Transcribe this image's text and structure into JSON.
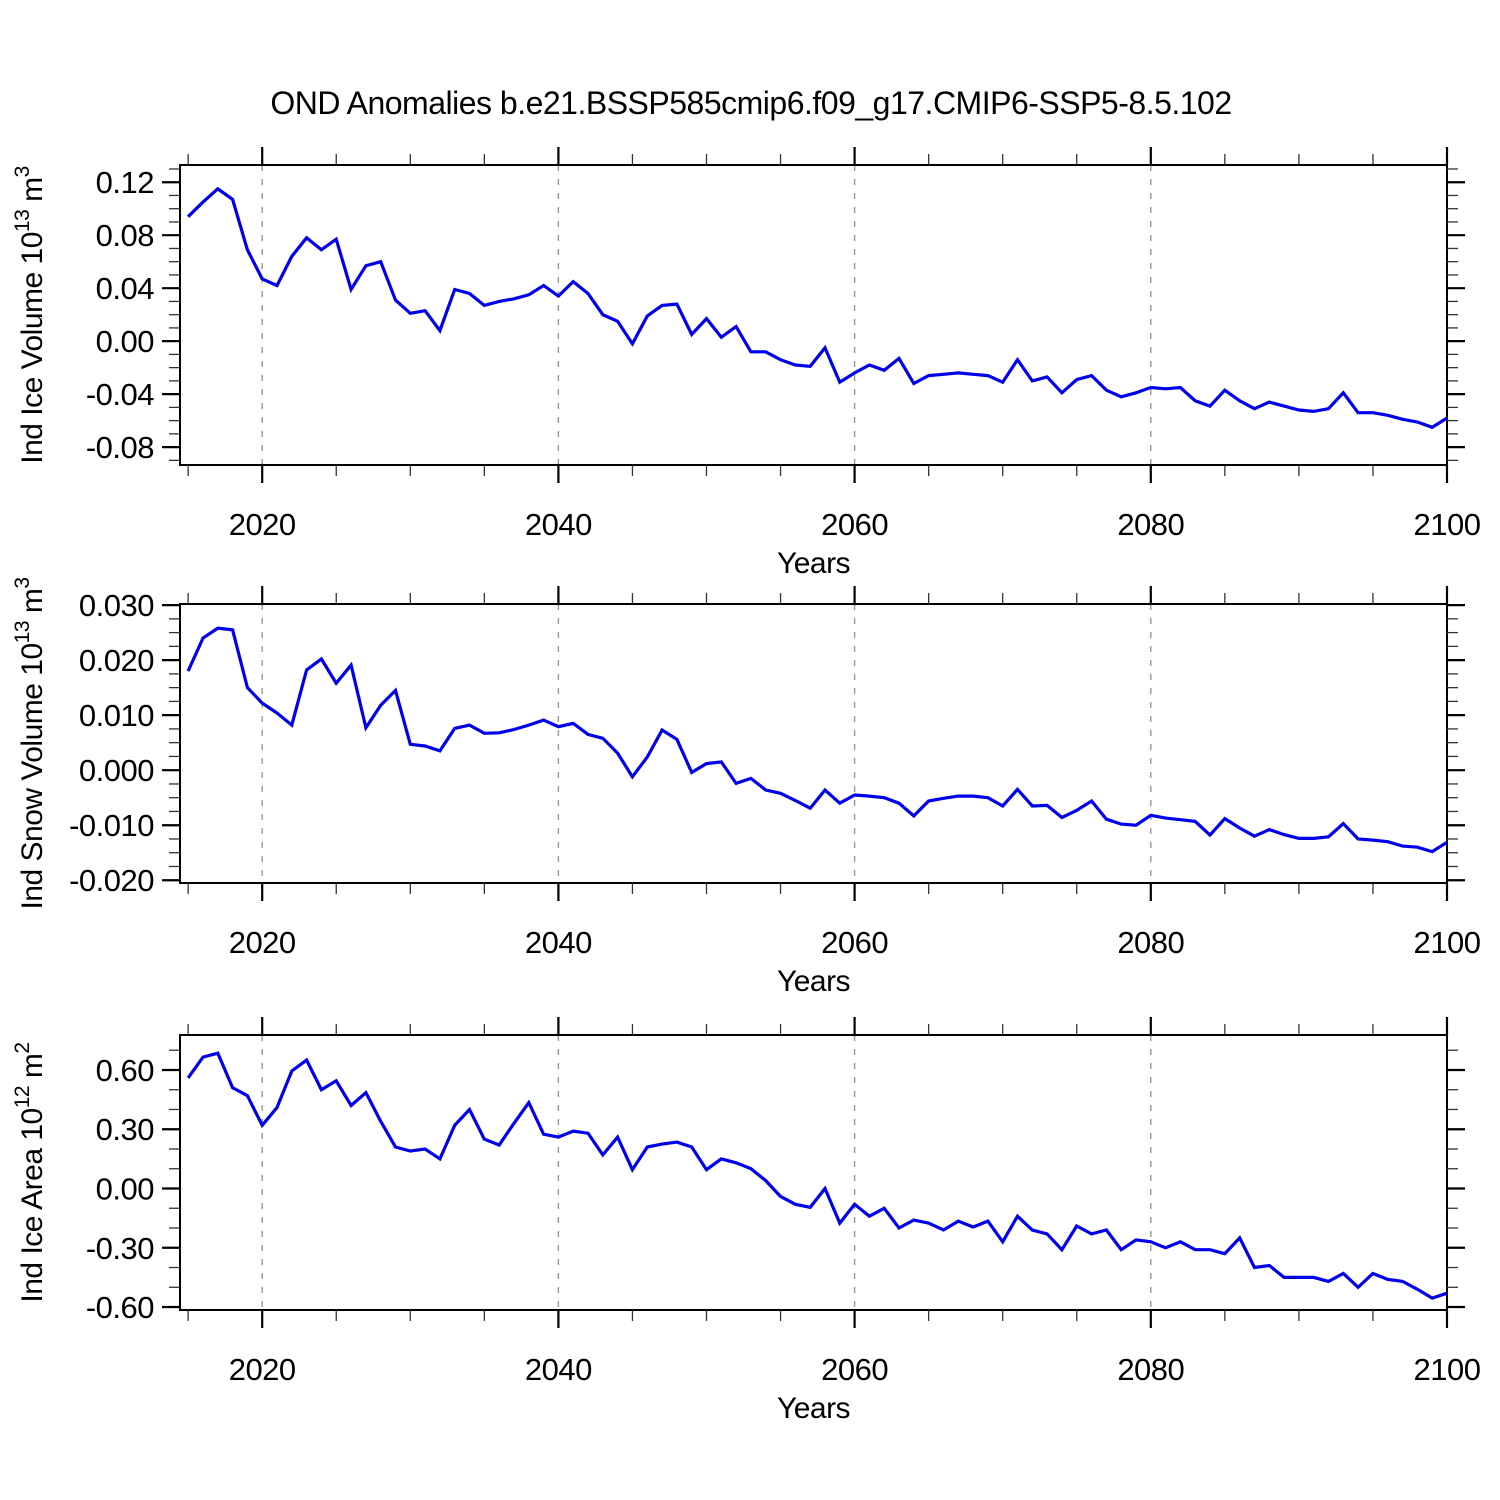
{
  "title": "OND Anomalies b.e21.BSSP585cmip6.f09_g17.CMIP6-SSP5-8.5.102",
  "chart_data": {
    "type": "line",
    "line_color": "#0000EE",
    "grid_color": "#999999",
    "x": {
      "label": "Years",
      "years_start": 2015,
      "years_end": 2100,
      "range": [
        2014.45,
        2100
      ],
      "ticks": [
        2020,
        2040,
        2060,
        2080,
        2100
      ],
      "tick_labels": [
        "2020",
        "2040",
        "2060",
        "2080",
        "2100"
      ],
      "minor_step": 5,
      "grid_at": [
        2020,
        2040,
        2060,
        2080
      ]
    },
    "panels": [
      {
        "name": "ind-ice-volume",
        "ylabel": {
          "text": "Ind Ice Volume 10",
          "sup": "13",
          "text2": " m",
          "sup2": "3"
        },
        "yrange": [
          -0.0935,
          0.133
        ],
        "ytick_values": [
          0.12,
          0.08,
          0.04,
          0.0,
          -0.04,
          -0.08
        ],
        "ytick_labels": [
          "0.12",
          "0.08",
          "0.04",
          "0.00",
          "-0.04",
          "-0.08"
        ],
        "yminor_step": 0.01,
        "values": [
          0.094,
          0.105,
          0.115,
          0.107,
          0.069,
          0.047,
          0.042,
          0.064,
          0.078,
          0.069,
          0.077,
          0.039,
          0.057,
          0.06,
          0.031,
          0.021,
          0.023,
          0.008,
          0.039,
          0.036,
          0.027,
          0.03,
          0.032,
          0.035,
          0.042,
          0.034,
          0.045,
          0.036,
          0.02,
          0.015,
          -0.002,
          0.019,
          0.027,
          0.028,
          0.005,
          0.017,
          0.003,
          0.011,
          -0.008,
          -0.008,
          -0.014,
          -0.018,
          -0.019,
          -0.005,
          -0.031,
          -0.024,
          -0.018,
          -0.022,
          -0.013,
          -0.032,
          -0.026,
          -0.025,
          -0.024,
          -0.025,
          -0.026,
          -0.031,
          -0.014,
          -0.03,
          -0.027,
          -0.039,
          -0.029,
          -0.026,
          -0.037,
          -0.042,
          -0.039,
          -0.035,
          -0.036,
          -0.035,
          -0.045,
          -0.049,
          -0.037,
          -0.045,
          -0.051,
          -0.046,
          -0.049,
          -0.052,
          -0.053,
          -0.051,
          -0.039,
          -0.054,
          -0.054,
          -0.056,
          -0.059,
          -0.061,
          -0.065,
          -0.058
        ]
      },
      {
        "name": "ind-snow-volume",
        "ylabel": {
          "text": "Ind Snow Volume 10",
          "sup": "13",
          "text2": " m",
          "sup2": "3"
        },
        "yrange": [
          -0.0205,
          0.0302
        ],
        "ytick_values": [
          0.03,
          0.02,
          0.01,
          0.0,
          -0.01,
          -0.02
        ],
        "ytick_labels": [
          "0.030",
          "0.020",
          "0.010",
          "0.000",
          "-0.010",
          "-0.020"
        ],
        "yminor_step": 0.0025,
        "values": [
          0.018,
          0.024,
          0.0258,
          0.0255,
          0.015,
          0.0122,
          0.0104,
          0.0082,
          0.0182,
          0.0202,
          0.0158,
          0.0191,
          0.0077,
          0.0118,
          0.0145,
          0.0047,
          0.0044,
          0.0035,
          0.0076,
          0.0082,
          0.0067,
          0.0068,
          0.0074,
          0.0082,
          0.0091,
          0.0079,
          0.0085,
          0.0065,
          0.0058,
          0.0031,
          -0.0012,
          0.0024,
          0.0073,
          0.0056,
          -0.0004,
          0.0012,
          0.0015,
          -0.0024,
          -0.0015,
          -0.0036,
          -0.0042,
          -0.0055,
          -0.0069,
          -0.0036,
          -0.006,
          -0.0045,
          -0.0047,
          -0.005,
          -0.006,
          -0.0083,
          -0.0056,
          -0.0051,
          -0.0047,
          -0.0047,
          -0.005,
          -0.0065,
          -0.0035,
          -0.0065,
          -0.0064,
          -0.0086,
          -0.0073,
          -0.0056,
          -0.0089,
          -0.0098,
          -0.01,
          -0.0082,
          -0.0087,
          -0.009,
          -0.0093,
          -0.0118,
          -0.0088,
          -0.0105,
          -0.012,
          -0.0108,
          -0.0117,
          -0.0124,
          -0.0124,
          -0.0121,
          -0.0097,
          -0.0125,
          -0.0127,
          -0.013,
          -0.0138,
          -0.014,
          -0.0148,
          -0.0131
        ]
      },
      {
        "name": "ind-ice-area",
        "ylabel": {
          "text": "Ind Ice Area 10",
          "sup": "12",
          "text2": " m",
          "sup2": "2"
        },
        "yrange": [
          -0.615,
          0.777
        ],
        "ytick_values": [
          0.6,
          0.3,
          0.0,
          -0.3,
          -0.6
        ],
        "ytick_labels": [
          "0.60",
          "0.30",
          "0.00",
          "-0.30",
          "-0.60"
        ],
        "yminor_step": 0.1,
        "values": [
          0.56,
          0.665,
          0.685,
          0.51,
          0.47,
          0.32,
          0.41,
          0.595,
          0.65,
          0.5,
          0.545,
          0.42,
          0.485,
          0.34,
          0.21,
          0.19,
          0.2,
          0.15,
          0.32,
          0.4,
          0.25,
          0.22,
          0.33,
          0.435,
          0.275,
          0.26,
          0.29,
          0.28,
          0.17,
          0.26,
          0.095,
          0.21,
          0.225,
          0.235,
          0.21,
          0.095,
          0.15,
          0.13,
          0.1,
          0.04,
          -0.04,
          -0.08,
          -0.095,
          0.0,
          -0.175,
          -0.08,
          -0.14,
          -0.1,
          -0.2,
          -0.16,
          -0.175,
          -0.21,
          -0.165,
          -0.195,
          -0.165,
          -0.27,
          -0.14,
          -0.21,
          -0.23,
          -0.31,
          -0.19,
          -0.23,
          -0.21,
          -0.31,
          -0.26,
          -0.27,
          -0.3,
          -0.27,
          -0.31,
          -0.31,
          -0.33,
          -0.25,
          -0.4,
          -0.39,
          -0.45,
          -0.45,
          -0.45,
          -0.47,
          -0.43,
          -0.5,
          -0.43,
          -0.46,
          -0.47,
          -0.51,
          -0.555,
          -0.53
        ]
      }
    ]
  }
}
